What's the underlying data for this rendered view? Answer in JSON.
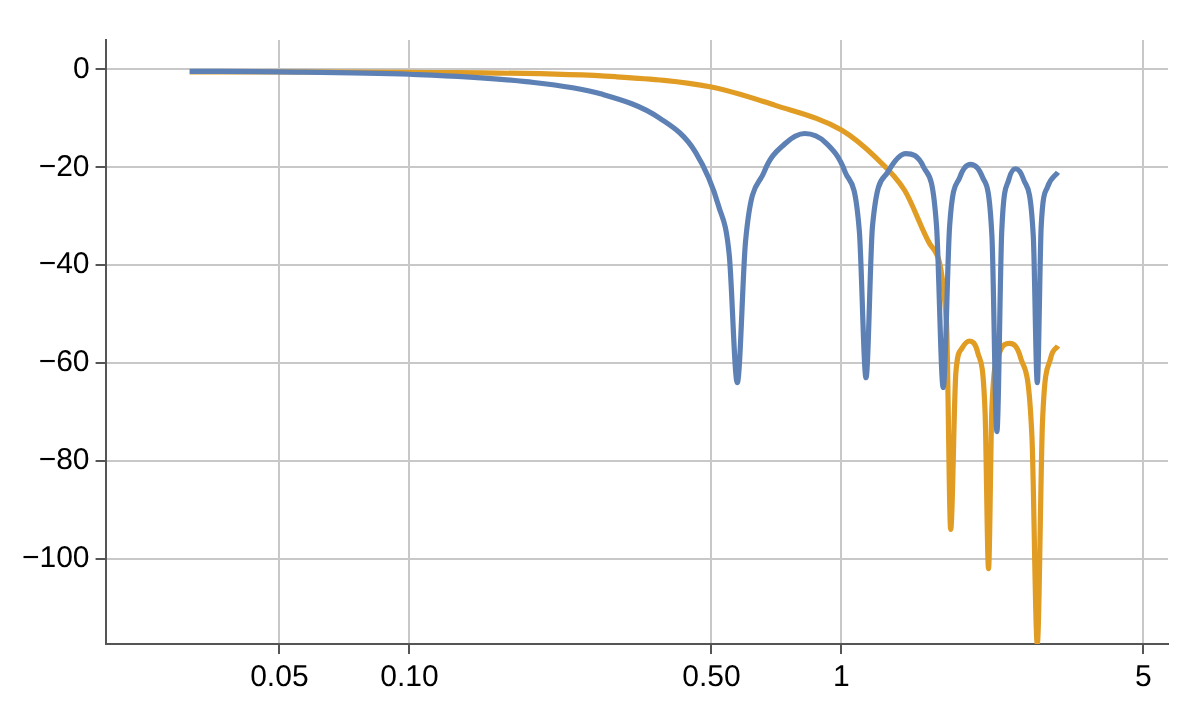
{
  "chart_data": {
    "type": "line",
    "log": "x",
    "grid": true,
    "marker": "none",
    "line_style": "solid",
    "xlim": [
      0.0198,
      5.7
    ],
    "ylim": [
      -117.4,
      6
    ],
    "xticks": [
      0.05,
      {
        "value": 0.1,
        "label": "0.10"
      },
      {
        "value": 0.5,
        "label": "0.50"
      },
      1,
      5
    ],
    "yticks": [
      0,
      -20,
      -40,
      -60,
      -80,
      -100
    ],
    "series": [
      {
        "color": "#5e81b5",
        "x": [
          0.031,
          0.05,
          0.1,
          0.186,
          0.277,
          0.38,
          0.46,
          0.52,
          0.55,
          0.574,
          0.6,
          0.662,
          0.74,
          0.823,
          0.92,
          1.02,
          1.1,
          1.14,
          1.18,
          1.28,
          1.41,
          1.55,
          1.66,
          1.72,
          1.78,
          1.88,
          1.99,
          2.12,
          2.23,
          2.29,
          2.35,
          2.44,
          2.53,
          2.64,
          2.78,
          2.84,
          2.9,
          3.0,
          3.17
        ],
        "values": [
          -0.4,
          -0.5,
          -1,
          -2.5,
          -5,
          -10,
          -17,
          -28,
          -38,
          -64,
          -35,
          -21,
          -15.2,
          -13.1,
          -15,
          -21,
          -33,
          -63,
          -32,
          -21,
          -17.2,
          -20,
          -32,
          -65,
          -32,
          -22,
          -19.4,
          -22,
          -34,
          -74,
          -33,
          -22.5,
          -20.3,
          -22.5,
          -34,
          -64,
          -32,
          -24,
          -21
        ]
      },
      {
        "color": "#e19c24",
        "x": [
          0.031,
          0.05,
          0.1,
          0.3,
          0.5,
          0.7,
          1,
          1.2,
          1.4,
          1.6,
          1.75,
          1.79,
          1.84,
          1.9,
          1.98,
          2.07,
          2.15,
          2.19,
          2.23,
          2.32,
          2.45,
          2.6,
          2.76,
          2.84,
          2.92,
          3.05,
          3.17
        ],
        "values": [
          -0.5,
          -0.5,
          -0.6,
          -1.5,
          -3.6,
          -7.3,
          -12.4,
          -18,
          -24.7,
          -35.6,
          -51.6,
          -94,
          -62,
          -57,
          -55.5,
          -58,
          -70,
          -102,
          -69,
          -58,
          -56,
          -59,
          -75,
          -117.4,
          -72,
          -59,
          -56.5
        ]
      }
    ]
  }
}
